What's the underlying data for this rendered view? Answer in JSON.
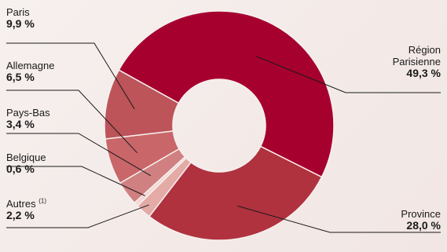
{
  "chart_data": {
    "type": "pie",
    "donut": true,
    "title": "",
    "slices": [
      {
        "label": "Région Parisienne",
        "value_label": "49,3 %",
        "value": 49.3,
        "color": "#a6002f"
      },
      {
        "label": "Province",
        "value_label": "28,0 %",
        "value": 28.0,
        "color": "#b0323f"
      },
      {
        "label": "Autres",
        "footnote": "(1)",
        "value_label": "2,2 %",
        "value": 2.2,
        "color": "#e4aaa6"
      },
      {
        "label": "Belgique",
        "value_label": "0,6 %",
        "value": 0.6,
        "color": "#f3d7d3"
      },
      {
        "label": "Pays-Bas",
        "value_label": "3,4 %",
        "value": 3.4,
        "color": "#d08080"
      },
      {
        "label": "Allemagne",
        "value_label": "6,5 %",
        "value": 6.5,
        "color": "#c96669"
      },
      {
        "label": "Paris",
        "value_label": "9,9 %",
        "value": 9.9,
        "color": "#bc5459"
      }
    ]
  }
}
